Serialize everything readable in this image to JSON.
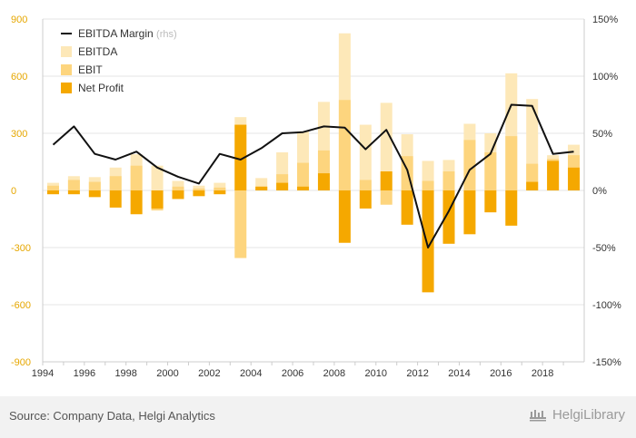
{
  "chart_data": {
    "type": "bar",
    "categories": [
      "1994",
      "1995",
      "1996",
      "1997",
      "1998",
      "1999",
      "2000",
      "2001",
      "2002",
      "2003",
      "2004",
      "2005",
      "2006",
      "2007",
      "2008",
      "2009",
      "2010",
      "2011",
      "2012",
      "2013",
      "2014",
      "2015",
      "2016",
      "2017",
      "2018",
      "2019"
    ],
    "x_tick_labels": [
      "1994",
      "1996",
      "1998",
      "2000",
      "2002",
      "2004",
      "2006",
      "2008",
      "2010",
      "2012",
      "2014",
      "2016",
      "2018"
    ],
    "y_left_ticks": [
      "900",
      "600",
      "300",
      "0",
      "-300",
      "-600",
      "-900"
    ],
    "y_right_ticks": [
      "150%",
      "100%",
      "50%",
      "0%",
      "-50%",
      "-100%",
      "-150%"
    ],
    "ylim_left": [
      -900,
      900
    ],
    "ylim_right": [
      -150,
      150
    ],
    "series": [
      {
        "name": "EBITDA",
        "type": "bar",
        "axis": "left",
        "color": "#fde8b8",
        "values": [
          40,
          75,
          70,
          120,
          190,
          130,
          50,
          25,
          40,
          385,
          65,
          200,
          310,
          465,
          825,
          345,
          460,
          295,
          155,
          160,
          350,
          300,
          615,
          480,
          185,
          240
        ]
      },
      {
        "name": "EBIT",
        "type": "bar",
        "axis": "left",
        "color": "#fdd57e",
        "values": [
          25,
          55,
          45,
          75,
          130,
          -105,
          20,
          10,
          15,
          -355,
          20,
          85,
          145,
          210,
          475,
          55,
          -75,
          180,
          50,
          100,
          265,
          200,
          285,
          140,
          165,
          185
        ]
      },
      {
        "name": "Net Profit",
        "type": "bar",
        "axis": "left",
        "color": "#f5a800",
        "values": [
          -20,
          -20,
          -35,
          -90,
          -125,
          -95,
          -45,
          -30,
          -20,
          345,
          20,
          40,
          20,
          90,
          -275,
          -95,
          100,
          -180,
          -535,
          -280,
          -230,
          -115,
          -185,
          45,
          155,
          120
        ]
      },
      {
        "name": "EBITDA Margin",
        "type": "line",
        "axis": "right",
        "unit_suffix": "(rhs)",
        "color": "#111111",
        "values": [
          40,
          56,
          32,
          27,
          34,
          20,
          12,
          6,
          32,
          27,
          37,
          50,
          51,
          56,
          55,
          36,
          53,
          18,
          -50,
          -18,
          18,
          32,
          75,
          74,
          32,
          34
        ]
      }
    ],
    "legend_position": "top-left",
    "grid": "horizontal"
  },
  "footer": {
    "source": "Source: Company Data, Helgi Analytics",
    "brand": "HelgiLibrary"
  }
}
